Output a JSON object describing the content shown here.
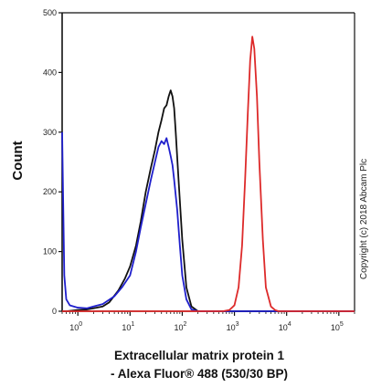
{
  "chart_data": {
    "type": "line",
    "title": "",
    "xlabel_line1": "Extracellular matrix protein 1",
    "xlabel_line2": "- Alexa Fluor® 488 (530/30 BP)",
    "ylabel": "Count",
    "x_scale": "log",
    "xlim": [
      0.5,
      200000
    ],
    "ylim": [
      0,
      500
    ],
    "y_ticks": [
      0,
      100,
      200,
      300,
      400,
      500
    ],
    "x_ticks": [
      {
        "value": 1,
        "base": "10",
        "exp": "0"
      },
      {
        "value": 10,
        "base": "10",
        "exp": "1"
      },
      {
        "value": 100,
        "base": "10",
        "exp": "2"
      },
      {
        "value": 1000,
        "base": "10",
        "exp": "3"
      },
      {
        "value": 10000,
        "base": "10",
        "exp": "4"
      },
      {
        "value": 100000,
        "base": "10",
        "exp": "5"
      }
    ],
    "grid": false,
    "legend": "none",
    "series": [
      {
        "color": "#111111",
        "points": [
          [
            0.5,
            0
          ],
          [
            0.6,
            0
          ],
          [
            1.0,
            2
          ],
          [
            1.5,
            3
          ],
          [
            2,
            5
          ],
          [
            3,
            8
          ],
          [
            4,
            15
          ],
          [
            6,
            35
          ],
          [
            8,
            55
          ],
          [
            10,
            75
          ],
          [
            13,
            110
          ],
          [
            16,
            150
          ],
          [
            20,
            200
          ],
          [
            25,
            240
          ],
          [
            30,
            270
          ],
          [
            35,
            300
          ],
          [
            40,
            320
          ],
          [
            45,
            340
          ],
          [
            50,
            345
          ],
          [
            55,
            360
          ],
          [
            60,
            370
          ],
          [
            65,
            360
          ],
          [
            70,
            340
          ],
          [
            75,
            300
          ],
          [
            85,
            220
          ],
          [
            100,
            120
          ],
          [
            120,
            40
          ],
          [
            150,
            8
          ],
          [
            200,
            0
          ],
          [
            200000,
            0
          ]
        ]
      },
      {
        "color": "#1f1fcc",
        "points": [
          [
            0.5,
            300
          ],
          [
            0.52,
            200
          ],
          [
            0.55,
            60
          ],
          [
            0.6,
            20
          ],
          [
            0.7,
            10
          ],
          [
            1.0,
            6
          ],
          [
            1.5,
            5
          ],
          [
            2,
            8
          ],
          [
            3,
            12
          ],
          [
            5,
            25
          ],
          [
            7,
            40
          ],
          [
            10,
            60
          ],
          [
            13,
            100
          ],
          [
            16,
            140
          ],
          [
            20,
            180
          ],
          [
            25,
            220
          ],
          [
            30,
            250
          ],
          [
            35,
            275
          ],
          [
            40,
            285
          ],
          [
            45,
            280
          ],
          [
            50,
            290
          ],
          [
            55,
            275
          ],
          [
            60,
            260
          ],
          [
            65,
            245
          ],
          [
            70,
            220
          ],
          [
            80,
            170
          ],
          [
            90,
            110
          ],
          [
            100,
            60
          ],
          [
            120,
            20
          ],
          [
            150,
            3
          ],
          [
            200,
            0
          ],
          [
            200000,
            0
          ]
        ]
      },
      {
        "color": "#dd2a2a",
        "points": [
          [
            0.5,
            0
          ],
          [
            600,
            0
          ],
          [
            800,
            2
          ],
          [
            1000,
            10
          ],
          [
            1200,
            40
          ],
          [
            1400,
            110
          ],
          [
            1600,
            220
          ],
          [
            1800,
            330
          ],
          [
            2000,
            420
          ],
          [
            2200,
            460
          ],
          [
            2400,
            440
          ],
          [
            2700,
            360
          ],
          [
            3000,
            250
          ],
          [
            3500,
            120
          ],
          [
            4000,
            40
          ],
          [
            5000,
            8
          ],
          [
            6000,
            2
          ],
          [
            7000,
            0
          ],
          [
            200000,
            0
          ]
        ]
      }
    ]
  },
  "copyright": "Copyright (c) 2018 Abcam Plc"
}
